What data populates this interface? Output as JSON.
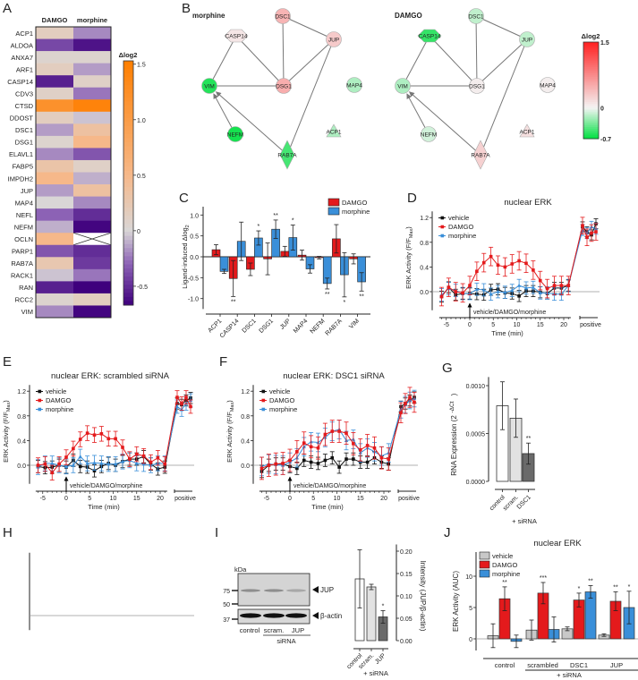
{
  "panel_labels": [
    "A",
    "B",
    "C",
    "D",
    "E",
    "F",
    "G",
    "H",
    "I",
    "J"
  ],
  "colors": {
    "vehicle": "#111111",
    "DAMGO": "#e41a1c",
    "morphine": "#3a8fd9",
    "vehicle_bar": "#c8c8c8"
  },
  "chart_data": {
    "A": {
      "type": "heatmap",
      "columns": [
        "DAMGO",
        "morphine"
      ],
      "rows": [
        "ACP1",
        "ALDOA",
        "ANXA7",
        "ARF1",
        "CASP14",
        "CDV3",
        "CTSD",
        "DDOST",
        "DSC1",
        "DSG1",
        "ELAVL1",
        "FABP5",
        "IMPDH2",
        "JUP",
        "MAP4",
        "NEFL",
        "NEFM",
        "OCLN",
        "PARP1",
        "RAB7A",
        "RACK1",
        "RAN",
        "RCC2",
        "VIM"
      ],
      "values": [
        [
          0.15,
          -0.2
        ],
        [
          -0.4,
          -0.6
        ],
        [
          0.05,
          0.05
        ],
        [
          0.15,
          -0.15
        ],
        [
          -0.55,
          0.1
        ],
        [
          0.1,
          -0.25
        ],
        [
          1.2,
          1.45
        ],
        [
          0.15,
          -0.05
        ],
        [
          -0.15,
          0.35
        ],
        [
          0.05,
          0.5
        ],
        [
          -0.2,
          -0.35
        ],
        [
          0.3,
          0.1
        ],
        [
          0.5,
          -0.1
        ],
        [
          -0.15,
          0.35
        ],
        [
          0.0,
          -0.2
        ],
        [
          -0.3,
          -0.5
        ],
        [
          -0.1,
          -0.65
        ],
        [
          0.5,
          null
        ],
        [
          -0.35,
          -0.5
        ],
        [
          0.25,
          -0.45
        ],
        [
          -0.05,
          -0.25
        ],
        [
          -0.55,
          -0.7
        ],
        [
          0.05,
          0.15
        ],
        [
          -0.2,
          -0.65
        ]
      ],
      "colorbar": {
        "title": "Δlog2",
        "range": [
          -0.67,
          1.53
        ],
        "ticks": [
          1.5,
          1.0,
          0.5,
          0,
          -0.5
        ],
        "tick_labels": [
          "1.5",
          "1.0",
          "0.5",
          "0",
          "-0.5"
        ]
      }
    },
    "B": {
      "type": "network",
      "networks": [
        {
          "title": "morphine",
          "values": {
            "DSC1": 0.45,
            "CASP14": 0.1,
            "JUP": 0.3,
            "VIM": -0.6,
            "DSG1": 0.5,
            "MAP4": -0.2,
            "NEFM": -0.64,
            "ACP1": -0.2,
            "RAB7A": -0.5
          }
        },
        {
          "title": "DAMGO",
          "values": {
            "DSC1": -0.15,
            "CASP14": -0.55,
            "JUP": -0.15,
            "VIM": -0.2,
            "DSG1": 0.05,
            "MAP4": 0.04,
            "NEFM": -0.1,
            "ACP1": 0.15,
            "RAB7A": 0.25
          }
        }
      ],
      "nodes": [
        {
          "id": "DSC1",
          "shape": "circle"
        },
        {
          "id": "CASP14",
          "shape": "hexagon"
        },
        {
          "id": "JUP",
          "shape": "circle"
        },
        {
          "id": "VIM",
          "shape": "circle"
        },
        {
          "id": "DSG1",
          "shape": "circle"
        },
        {
          "id": "MAP4",
          "shape": "circle"
        },
        {
          "id": "NEFM",
          "shape": "circle"
        },
        {
          "id": "ACP1",
          "shape": "triangle"
        },
        {
          "id": "RAB7A",
          "shape": "diamond"
        }
      ],
      "edges": [
        [
          "CASP14",
          "VIM",
          false
        ],
        [
          "CASP14",
          "DSG1",
          false
        ],
        [
          "DSC1",
          "DSG1",
          false
        ],
        [
          "DSC1",
          "JUP",
          false
        ],
        [
          "JUP",
          "DSG1",
          false
        ],
        [
          "JUP",
          "RAB7A",
          false
        ],
        [
          "VIM",
          "DSG1",
          false
        ],
        [
          "NEFM",
          "VIM",
          true
        ],
        [
          "RAB7A",
          "VIM",
          true
        ]
      ],
      "colorbar": {
        "title": "Δlog2",
        "range": [
          -0.7,
          1.5
        ],
        "tick_labels": [
          "1.5",
          "0",
          "-0.7"
        ],
        "ticks": [
          1.5,
          0,
          -0.7
        ]
      }
    },
    "C": {
      "type": "bar",
      "categories": [
        "ACP1",
        "CASP14",
        "DSC1",
        "DSG1",
        "JUP",
        "MAP4",
        "NEFM",
        "RAB7A",
        "VIM"
      ],
      "series": [
        {
          "name": "DAMGO",
          "values": [
            0.17,
            -0.52,
            -0.3,
            -0.05,
            0.13,
            0.04,
            -0.02,
            0.43,
            -0.05
          ],
          "err": [
            0.12,
            0.43,
            0.15,
            0.38,
            0.12,
            0.12,
            0.03,
            0.34,
            0.12
          ],
          "sig": [
            "",
            "**",
            "",
            "",
            "",
            "",
            "",
            "",
            ""
          ]
        },
        {
          "name": "morphine",
          "values": [
            -0.35,
            0.37,
            0.45,
            0.66,
            0.46,
            -0.29,
            -0.64,
            -0.43,
            -0.6
          ],
          "err": [
            0.05,
            0.46,
            0.17,
            0.22,
            0.3,
            0.1,
            0.13,
            0.53,
            0.22
          ],
          "sig": [
            "",
            "",
            "*",
            "**",
            "*",
            "",
            "**",
            "*",
            "**"
          ]
        }
      ],
      "ylabel": "Ligand-induced Δlog",
      "ylabel_sub": "2",
      "ylim": [
        -1.2,
        1.2
      ],
      "yticks": [
        1.0,
        0.5,
        0.0,
        -0.5,
        -1.0
      ],
      "ytick_labels": [
        "1.0",
        "0.5",
        "0.0",
        "-0.5",
        "-1.0"
      ]
    },
    "D": {
      "type": "line",
      "title": "nuclear ERK",
      "x": [
        -6,
        -4.5,
        -3,
        -1.5,
        0,
        1.5,
        3,
        4.5,
        6,
        7.5,
        9,
        10.5,
        12,
        13.5,
        15,
        16.5,
        18,
        19.5,
        21
      ],
      "series": [
        {
          "name": "vehicle",
          "values": [
            -0.08,
            0.07,
            -0.05,
            -0.03,
            -0.03,
            -0.04,
            -0.05,
            0.03,
            0.04,
            -0.02,
            -0.03,
            -0.07,
            0.01,
            0.01,
            -0.01,
            -0.03,
            0.06,
            0.06,
            0.1
          ],
          "err": 0.09,
          "positive": [
            1.05,
            0.97,
            0.92,
            1.1
          ]
        },
        {
          "name": "DAMGO",
          "values": [
            -0.08,
            0.07,
            0.0,
            -0.02,
            0.1,
            0.33,
            0.47,
            0.57,
            0.43,
            0.4,
            0.45,
            0.5,
            0.46,
            0.35,
            0.18,
            0.05,
            0.1,
            0.1,
            0.1
          ],
          "err": 0.15,
          "positive": [
            1.07,
            0.88,
            0.95,
            0.97
          ]
        },
        {
          "name": "morphine",
          "values": [
            -0.05,
            0.05,
            0.02,
            -0.03,
            -0.03,
            0.04,
            0.03,
            -0.04,
            0.0,
            -0.01,
            0.02,
            0.1,
            0.06,
            0.07,
            -0.02,
            -0.02,
            -0.04,
            -0.04,
            0.1
          ],
          "err": 0.1,
          "positive": [
            1.0,
            0.95,
            1.05,
            1.02
          ]
        }
      ],
      "ylabel": "ERK Activity (F/F",
      "ylabel_sub": "Max",
      "ylabel_end": ")",
      "yticks": [
        0,
        0.4,
        0.8,
        1.2
      ],
      "ytick_labels": [
        "0.0",
        "0.4",
        "0.8",
        "1.2"
      ],
      "xticks": [
        -5,
        0,
        5,
        10,
        15,
        20
      ],
      "xtick_labels": [
        "-5",
        "0",
        "5",
        "10",
        "15",
        "20"
      ],
      "xlabel": "Time (min)",
      "annotation": "vehicle/DAMGO/morphine",
      "positive_label": "positive"
    },
    "E": {
      "type": "line",
      "title": "nuclear ERK: scrambled siRNA",
      "x": [
        -6,
        -4.5,
        -3,
        -1.5,
        0,
        1.5,
        3,
        4.5,
        6,
        7.5,
        9,
        10.5,
        12,
        13.5,
        15,
        16.5,
        18,
        19.5,
        21
      ],
      "series": [
        {
          "name": "vehicle",
          "values": [
            -0.02,
            -0.04,
            -0.03,
            0.0,
            -0.03,
            0.08,
            -0.02,
            -0.03,
            -0.09,
            -0.02,
            0.03,
            0.0,
            0.06,
            0.1,
            0.1,
            0.14,
            0.02,
            -0.06,
            -0.03
          ],
          "err": 0.1,
          "positive": [
            1.0,
            0.98,
            1.05,
            1.09
          ]
        },
        {
          "name": "DAMGO",
          "values": [
            0.0,
            0.02,
            -0.12,
            0.02,
            0.13,
            0.27,
            0.42,
            0.52,
            0.49,
            0.51,
            0.43,
            0.43,
            0.29,
            0.1,
            0.18,
            0.15,
            0.05,
            0.12,
            0.02
          ],
          "err": 0.12,
          "positive": [
            1.1,
            1.0,
            1.1,
            0.95
          ]
        },
        {
          "name": "morphine",
          "values": [
            -0.03,
            0.03,
            0.03,
            0.0,
            -0.02,
            0.0,
            0.14,
            0.03,
            0.04,
            0.03,
            0.02,
            0.02,
            0.06,
            0.08,
            0.03,
            0.02,
            0.0,
            0.03,
            0.03
          ],
          "err": 0.12,
          "positive": [
            0.95,
            0.9,
            1.0,
            1.05
          ]
        }
      ],
      "ylabel": "ERK Activity (F/F",
      "ylabel_sub": "Max",
      "ylabel_end": ")",
      "yticks": [
        0,
        0.4,
        0.8,
        1.2
      ],
      "ytick_labels": [
        "0.0",
        "0.4",
        "0.8",
        "1.2"
      ],
      "xticks": [
        -5,
        0,
        5,
        10,
        15,
        20
      ],
      "xtick_labels": [
        "-5",
        "0",
        "5",
        "10",
        "15",
        "20"
      ],
      "xlabel": "Time (min)",
      "annotation": "vehicle/DAMGO/morphine",
      "positive_label": "positive"
    },
    "F": {
      "type": "line",
      "title": "nuclear ERK: DSC1 siRNA",
      "x": [
        -6,
        -4.5,
        -3,
        -1.5,
        0,
        1.5,
        3,
        4.5,
        6,
        7.5,
        9,
        10.5,
        12,
        13.5,
        15,
        16.5,
        18,
        19.5,
        21
      ],
      "series": [
        {
          "name": "vehicle",
          "values": [
            -0.1,
            0.0,
            0.02,
            0.02,
            -0.02,
            -0.05,
            0.08,
            0.05,
            0.03,
            0.08,
            0.12,
            -0.03,
            0.1,
            0.1,
            0.05,
            0.05,
            0.12,
            0.05,
            0.02
          ],
          "err": 0.1,
          "positive": [
            0.95,
            1.0,
            1.05,
            1.1
          ]
        },
        {
          "name": "DAMGO",
          "values": [
            -0.05,
            0.0,
            0.02,
            0.03,
            0.08,
            0.22,
            0.36,
            0.3,
            0.28,
            0.5,
            0.55,
            0.55,
            0.52,
            0.35,
            0.25,
            0.32,
            0.28,
            0.12,
            0.1
          ],
          "err": 0.18,
          "positive": [
            0.85,
            1.0,
            1.1,
            1.02
          ]
        },
        {
          "name": "morphine",
          "values": [
            -0.02,
            0.02,
            0.01,
            0.0,
            0.05,
            0.12,
            0.3,
            0.38,
            0.37,
            0.45,
            0.55,
            0.58,
            0.4,
            0.42,
            0.2,
            0.28,
            0.22,
            0.15,
            0.2
          ],
          "err": 0.15,
          "positive": [
            0.9,
            0.98,
            1.05,
            1.08
          ]
        }
      ],
      "ylabel": "ERK Activity (F/F",
      "ylabel_sub": "Max",
      "ylabel_end": ")",
      "yticks": [
        0,
        0.4,
        0.8,
        1.2
      ],
      "ytick_labels": [
        "0.0",
        "0.4",
        "0.8",
        "1.2"
      ],
      "xticks": [
        -5,
        0,
        5,
        10,
        15,
        20
      ],
      "xtick_labels": [
        "-5",
        "0",
        "5",
        "10",
        "15",
        "20"
      ],
      "xlabel": "Time (min)",
      "annotation": "vehicle/DAMGO/morphine",
      "positive_label": "positive"
    },
    "G": {
      "type": "bar",
      "categories": [
        "control",
        "scram.",
        "DSC1"
      ],
      "group_label": "+ siRNA",
      "values": [
        0.00079,
        0.00066,
        0.00029
      ],
      "err": [
        0.00025,
        0.0002,
        0.00011
      ],
      "sig": [
        "",
        "",
        "**"
      ],
      "ylabel": "RNA Expression (2",
      "ylabel_sup": "-ΔCt",
      "ylabel_end": ")",
      "yticks": [
        0,
        0.0005,
        0.001
      ],
      "ytick_labels": [
        "0.0000",
        "0.0005",
        "0.0010"
      ]
    },
    "I": {
      "type": "bar",
      "blot": {
        "kda_label": "kDa",
        "markers": [
          "75",
          "50",
          "37"
        ],
        "bands": [
          "JUP",
          "β-actin"
        ],
        "lanes": [
          "control",
          "scram.",
          "JUP"
        ],
        "lane_group": "siRNA"
      },
      "categories": [
        "control",
        "scram.",
        "JUP"
      ],
      "group_label": "+ siRNA",
      "values": [
        0.138,
        0.12,
        0.053
      ],
      "err": [
        0.065,
        0.006,
        0.014
      ],
      "sig": [
        "",
        "",
        "*"
      ],
      "ylabel": "Intensity (JUP/β-actin)",
      "yticks": [
        0,
        0.05,
        0.1,
        0.15,
        0.2
      ],
      "ytick_labels": [
        "0.00",
        "0.05",
        "0.10",
        "0.15",
        "0.20"
      ]
    },
    "J": {
      "type": "bar",
      "title": "nuclear ERK",
      "groups": [
        "control",
        "scrambled",
        "DSC1",
        "JUP"
      ],
      "group_label": "+ siRNA",
      "series": [
        {
          "name": "vehicle",
          "values": [
            0.5,
            1.4,
            1.6,
            0.6
          ],
          "err": [
            1.9,
            1.6,
            0.3,
            0.2
          ],
          "sig": [
            "",
            "",
            "",
            ""
          ]
        },
        {
          "name": "DAMGO",
          "values": [
            6.4,
            7.3,
            6.2,
            6.0
          ],
          "err": [
            1.9,
            1.7,
            1.1,
            1.5
          ],
          "sig": [
            "**",
            "***",
            "*",
            "**"
          ]
        },
        {
          "name": "morphine",
          "values": [
            -0.4,
            1.5,
            7.5,
            5.0
          ],
          "err": [
            1.0,
            2.0,
            1.0,
            2.6
          ],
          "sig": [
            "",
            "",
            "**",
            "*"
          ]
        }
      ],
      "ylabel": "ERK Activity (AUC)",
      "yticks": [
        0,
        5,
        10
      ],
      "ytick_labels": [
        "0",
        "5",
        "10"
      ]
    }
  }
}
